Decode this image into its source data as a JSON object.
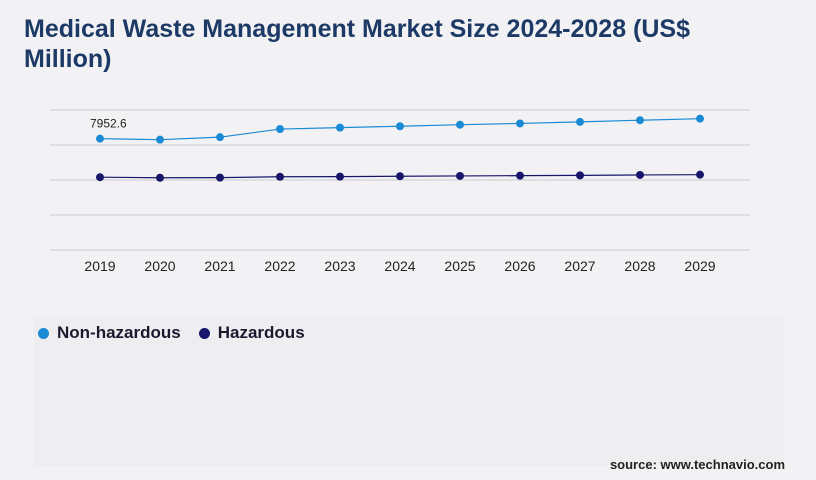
{
  "chart_data": {
    "type": "line",
    "title": "Medical Waste Management Market Size 2024-2028 (US$ Million)",
    "xlabel": "",
    "ylabel": "",
    "x": [
      "2019",
      "2020",
      "2021",
      "2022",
      "2023",
      "2024",
      "2025",
      "2026",
      "2027",
      "2028",
      "2029"
    ],
    "ylim": [
      0,
      10000
    ],
    "grid": true,
    "legend_position": "bottom-left",
    "series": [
      {
        "name": "Non-hazardous",
        "color": "#1a8ad4",
        "values": [
          7952.6,
          7880,
          8060,
          8640,
          8740,
          8840,
          8950,
          9040,
          9150,
          9270,
          9380
        ],
        "point_labels": [
          "7952.6",
          "",
          "",
          "",
          "",
          "",
          "",
          "",
          "",
          "",
          ""
        ]
      },
      {
        "name": "Hazardous",
        "color": "#17166b",
        "values": [
          5200,
          5160,
          5170,
          5230,
          5240,
          5270,
          5290,
          5310,
          5330,
          5360,
          5380
        ]
      }
    ]
  },
  "source": "source: www.technavio.com"
}
